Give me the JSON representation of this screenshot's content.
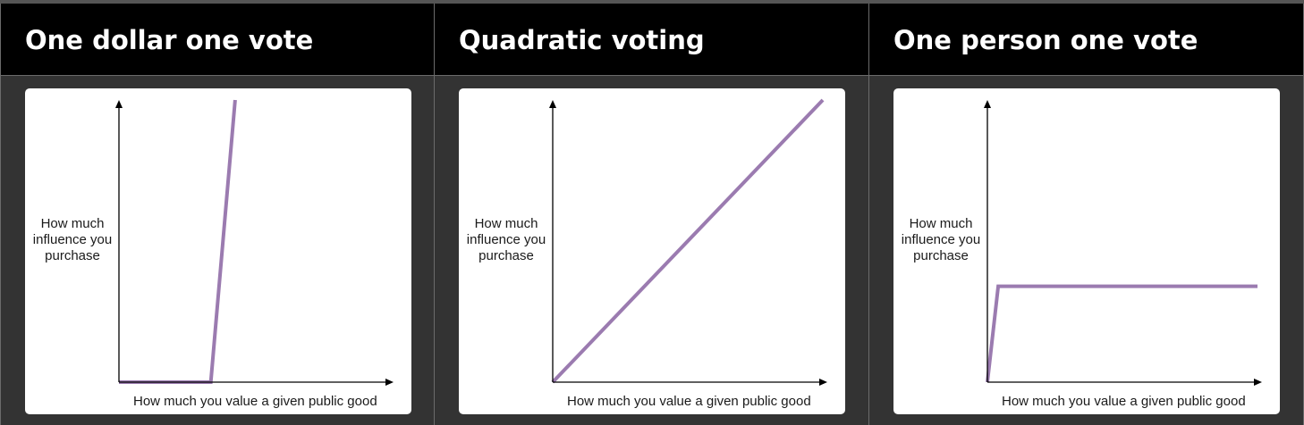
{
  "panels": [
    {
      "title": "One dollar one vote",
      "chart_data": {
        "type": "line",
        "ylabel_lines": [
          "How much",
          "influence you",
          "purchase"
        ],
        "xlabel": "How much you value a given public good",
        "series": [
          {
            "color": "#9b7bb0",
            "x": [
              0,
              0.34,
              0.43
            ],
            "y": [
              0,
              0,
              1
            ]
          }
        ],
        "xlim": [
          0,
          1
        ],
        "ylim": [
          0,
          1
        ],
        "grid": false,
        "legend": "none"
      }
    },
    {
      "title": "Quadratic voting",
      "chart_data": {
        "type": "line",
        "ylabel_lines": [
          "How much",
          "influence you",
          "purchase"
        ],
        "xlabel": "How much you value a given public good",
        "series": [
          {
            "color": "#9b7bb0",
            "x": [
              0,
              1
            ],
            "y": [
              0,
              1
            ]
          }
        ],
        "xlim": [
          0,
          1
        ],
        "ylim": [
          0,
          1
        ],
        "grid": false,
        "legend": "none"
      }
    },
    {
      "title": "One person one vote",
      "chart_data": {
        "type": "line",
        "ylabel_lines": [
          "How much",
          "influence you",
          "purchase"
        ],
        "xlabel": "How much you value a given public good",
        "series": [
          {
            "color": "#9b7bb0",
            "x": [
              0,
              0.04,
              1
            ],
            "y": [
              0,
              0.34,
              0.34
            ]
          }
        ],
        "xlim": [
          0,
          1
        ],
        "ylim": [
          0,
          1
        ],
        "grid": false,
        "legend": "none"
      }
    }
  ]
}
